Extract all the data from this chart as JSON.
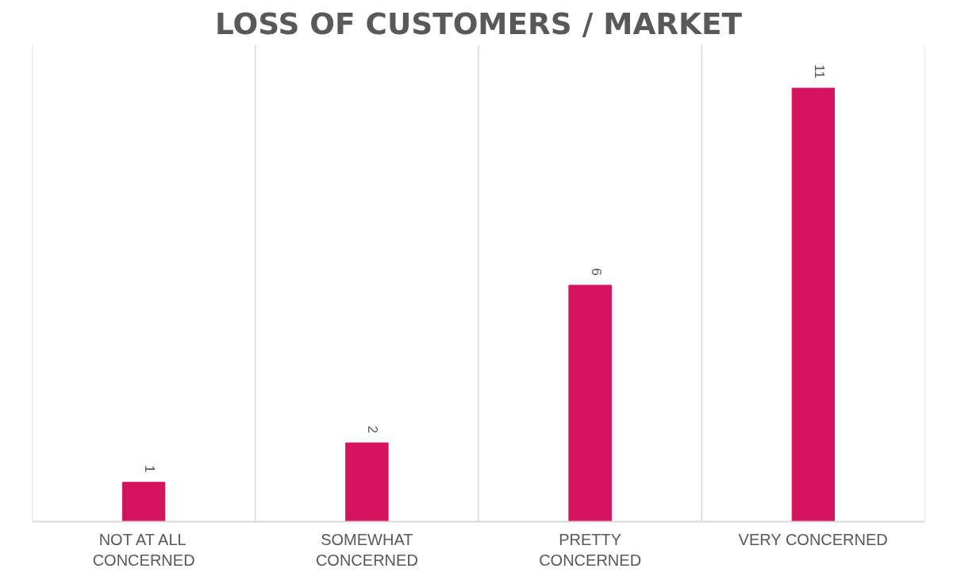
{
  "chart_data": {
    "type": "bar",
    "title": "LOSS OF CUSTOMERS / MARKET",
    "categories": [
      "NOT AT ALL\nCONCERNED",
      "SOMEWHAT\nCONCERNED",
      "PRETTY\nCONCERNED",
      "VERY CONCERNED"
    ],
    "values": [
      1,
      2,
      6,
      11
    ],
    "color": "#d6135f",
    "ylim": [
      0,
      12.1
    ],
    "data_labels": true,
    "grid": "x",
    "tick_labels": "x"
  }
}
